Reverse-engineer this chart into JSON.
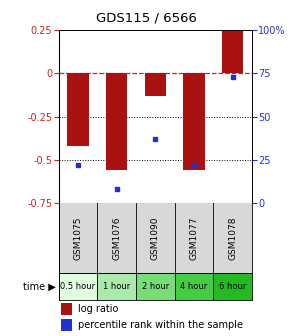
{
  "title": "GDS115 / 6566",
  "samples": [
    "GSM1075",
    "GSM1076",
    "GSM1090",
    "GSM1077",
    "GSM1078"
  ],
  "time_labels": [
    "0.5 hour",
    "1 hour",
    "2 hour",
    "4 hour",
    "6 hour"
  ],
  "time_colors": [
    "#dfffdf",
    "#aaeaaa",
    "#77dd77",
    "#44cc44",
    "#22bb22"
  ],
  "log_ratios": [
    -0.42,
    -0.56,
    -0.13,
    -0.56,
    0.25
  ],
  "percentile_ranks": [
    22,
    8,
    37,
    22,
    73
  ],
  "ylim_left": [
    -0.75,
    0.25
  ],
  "ylim_right": [
    0,
    100
  ],
  "bar_color": "#aa1111",
  "dot_color": "#2233cc",
  "sample_bg": "#d8d8d8",
  "legend_log_ratio": "log ratio",
  "legend_percentile": "percentile rank within the sample"
}
